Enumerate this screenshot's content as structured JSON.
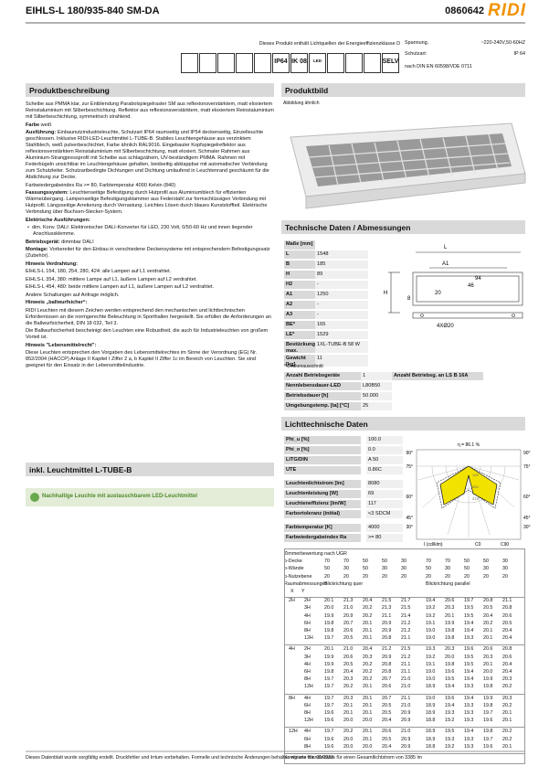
{
  "header": {
    "title": "EIHLS-L 180/935-840 SM-DA",
    "code": "0860642",
    "logo": "RIDI"
  },
  "energy_note": "Dieses Produkt enthält Lichtquellen der Energieeffizienzklasse  D",
  "icons": [
    "IP64",
    "IK 08",
    "LED",
    "SELV"
  ],
  "specs": {
    "rows": [
      [
        "Spannung,",
        "~220-240V,50-60HZ"
      ],
      [
        "Schutzart:",
        "IP 64"
      ]
    ],
    "norm": "nach DIN EN 60598/VDE 0711"
  },
  "description": {
    "title": "Produktbeschreibung",
    "items": [
      {
        "text": "Scheibe aus PMMA klar, zur Entblendung Parabolspiegelraster SM aus reflexionsverstärktem, matt eloxiertem Reinstaluminium mit Silberbeschichtung. Reflektor aus reflexionsverstärktem, matt eloxiertem Reinstaluminium mit Silberbeschichtung, symmetrisch strahlend."
      },
      {
        "label": "Farbe",
        "text": "weiß"
      },
      {
        "label": "Ausführung:",
        "text": "Einbaunutzindustrieleuchte, Schutzart IP64 raumseitig und IP54 deckenseitig, Einzelleuchte geschlossen. Inklusive RIDI-LED-Leuchtmittel L-TUBE-B. Stabiles Leuchtengehäuse aus verzinktem Stahlblech, weiß pulverbeschichtet, Farbe ähnlich RAL9016. Eingebauter Kopfspiegelreflektor aus reflexionsverstärktem Reinstaluminium mit Silberbeschichtung, matt eloxiert. Schmaler Rahmen aus Aluminium-Strangpressprofil mit Scheibe aus schlagzähem, UV-beständigem PMMA. Rahmen mit Federbügeln unsichtbar im Leuchtengehäuse gehalten, beidseitig abklappbar mit automatischer Verbindung zum Schutzleiter. Schutzartbedingte Dichtungen und Dichtung umlaufend in Leuchtenrand geschäumt für die Abdichtung zur Decke."
      },
      {
        "text": "Farbwiedergabeindex Ra >= 80, Farbtemperatur 4000 Kelvin (840)"
      },
      {
        "label": "Fassungssystem:",
        "text": "Leuchtenseitige Befestigung durch Hutprofil aus Aluminiumblech für effizienten Wärmeübergang. Lampenseitige Befestigungsklammer aus Federstahl zur formschlüssigen Verbindung mit Hutprofil. Längsseitige Arretierung durch Verrastung. Leichtes Lösen durch blaues Kunststoffteil. Elektrische Verbindung über Buchsen-Stecker-System."
      },
      {
        "heading": "Elektrische Ausführungen:"
      },
      {
        "bullet": "dim. Konv. DALI: Elektronischer DALI-Konverter für LED, 230 Volt, 0/50-60 Hz und innen liegender Anschlussklemme."
      },
      {
        "label": "Betriebsgerät:",
        "text": "dimmbar DALI"
      },
      {
        "label": "Montage:",
        "text": "Vorbereitet für den Einbau in verschiedene Deckensysteme mit entsprechendem Befestigungssatz (Zubehör)."
      },
      {
        "heading": "Hinweis Verdrahtung:"
      },
      {
        "text": "EIHLS-L 154, 180, 254, 280, 424: alle Lampen auf L1 verdrahtet."
      },
      {
        "text": "EIHLS-L 354, 380: mittlere Lampe auf L1, äußere Lampen auf L2 verdrahtet."
      },
      {
        "text": "EIHLS-L 454, 480: beide mittlere Lampen auf L1, äußere Lampen auf L2 verdrahtet."
      },
      {
        "text": "Andere Schaltungen auf Anfrage möglich."
      },
      {
        "heading": "Hinweis „ballwurfsicher“:"
      },
      {
        "text": "RIDI Leuchten mit diesem Zeichen werden entsprechend den mechanischen und lichttechnischen Erfordernissen an die normgerechte Beleuchtung in Sporthallen hergestellt. Sie erfüllen die Anforderungen an die Ballwurfsicherheit, DIN 18 032, Teil 3."
      },
      {
        "text": "Die Ballwurfsicherheit bescheinigt den Leuchten eine Robustheit, die auch für Industrieleuchten von großem Vorteil ist."
      },
      {
        "heading": "Hinweis \"Lebensmittelrecht\":"
      },
      {
        "text": "Diese Leuchten entsprechen den Vorgaben des Lebensmittelrechtes im Sinne der Verordnung (EG) Nr. 852/2004 (HACCP) Anlage II Kapitel I Ziffer 2 a, b Kapitel II Ziffer 1c im Bereich von Leuchten. Sie sind geeignet für den Einsatz in der Lebensmittelindustrie."
      }
    ]
  },
  "lamp_title": "inkl. Leuchtmittel L-TUBE-B",
  "green_note": "Nachhaltige Leuchte mit austauschbarem LED-Leuchtmittel",
  "product_image": {
    "title": "Produktbild",
    "caption": "Abbildung ähnlich"
  },
  "technical": {
    "title": "Technische Daten / Abmessungen",
    "header": "Maße [mm]",
    "rows": [
      [
        "L",
        "1548"
      ],
      [
        "B",
        "185"
      ],
      [
        "H",
        "89"
      ],
      [
        "H2",
        "-"
      ],
      [
        "A1",
        "1250"
      ],
      [
        "A2",
        "-"
      ],
      [
        "A3",
        "-"
      ],
      [
        "BE*",
        "165"
      ],
      [
        "LE*",
        "1529"
      ],
      [
        "Bestückung max.",
        "1XL-TUBE-B 58 W"
      ],
      [
        "Gewicht [kg]",
        "11"
      ]
    ],
    "footnote": "* Deckenausschnitt",
    "drawing_labels": [
      "L",
      "A1",
      "94",
      "46",
      "H",
      "20",
      "8",
      "4XØ20"
    ]
  },
  "gear": {
    "rows": [
      [
        "Anzahl Betriebsgeräte",
        "1",
        "Anzahl Betriebsg. an LS B 16A"
      ],
      [
        "Nennlebensdauer-LED",
        "L80B50"
      ],
      [
        "Betriebsdauer [h]",
        "50.000"
      ],
      [
        "Umgebungstemp. [ta] [°C]",
        "25"
      ]
    ]
  },
  "photometric": {
    "title": "Lichttechnische Daten",
    "rows": [
      [
        "Phi_u [%]",
        "100.0"
      ],
      [
        "Phi_o [%]",
        "0.0"
      ],
      [
        "LITG/DIN",
        "A 50"
      ],
      [
        "UTE",
        "0.86C"
      ],
      [
        "Leuchtenlichtstrom [lm]",
        "8080"
      ],
      [
        "Leuchtenleistung [W]",
        "69"
      ],
      [
        "Leuchteneffizienz [lm/W]",
        "117"
      ],
      [
        "Farbortoleranz (initial)",
        "<3 SDCM"
      ],
      [
        "Farbtemperatur [K]",
        "4000"
      ],
      [
        "Farbwiedergabeindex Ra",
        ">= 80"
      ]
    ],
    "polar": {
      "eta": "η = 86.1 %",
      "angles": [
        "90°",
        "75°",
        "60°",
        "45°",
        "30°"
      ],
      "radii": [
        "125",
        "250",
        "375"
      ],
      "unit": "I (cd/klm)",
      "c0": "C0",
      "c90": "C90"
    }
  },
  "ugr": {
    "title": "Zimmerbewertung nach UGR",
    "refl": [
      [
        "ρ-Decke",
        "70",
        "70",
        "50",
        "50",
        "30",
        "70",
        "70",
        "50",
        "50",
        "30"
      ],
      [
        "ρ-Wände",
        "50",
        "30",
        "50",
        "30",
        "30",
        "50",
        "30",
        "50",
        "30",
        "30"
      ],
      [
        "ρ-Nutzebene",
        "20",
        "20",
        "20",
        "20",
        "20",
        "20",
        "20",
        "20",
        "20",
        "20"
      ]
    ],
    "room": "Raumabmessungen",
    "xy": [
      "X",
      "Y"
    ],
    "dir": [
      "Blickrichtung quer",
      "Blickrichtung parallel"
    ],
    "groups": [
      {
        "x": "2H",
        "rows": [
          [
            "2H",
            "20.1",
            "21.3",
            "20.4",
            "21.5",
            "21.7",
            "19.4",
            "20.6",
            "19.7",
            "20.8",
            "21.1"
          ],
          [
            "3H",
            "20.0",
            "21.0",
            "20.2",
            "21.3",
            "21.5",
            "19.2",
            "20.3",
            "19.5",
            "20.5",
            "20.8"
          ],
          [
            "4H",
            "19.9",
            "20.9",
            "20.2",
            "21.1",
            "21.4",
            "19.2",
            "20.1",
            "19.5",
            "20.4",
            "20.6"
          ],
          [
            "6H",
            "19.8",
            "20.7",
            "20.1",
            "20.9",
            "21.2",
            "19.1",
            "19.9",
            "19.4",
            "20.2",
            "20.5"
          ],
          [
            "8H",
            "19.8",
            "20.6",
            "20.1",
            "20.9",
            "21.2",
            "19.0",
            "19.8",
            "19.4",
            "20.1",
            "20.4"
          ],
          [
            "12H",
            "19.7",
            "20.5",
            "20.1",
            "20.8",
            "21.1",
            "19.0",
            "19.8",
            "19.3",
            "20.1",
            "20.4"
          ]
        ]
      },
      {
        "x": "4H",
        "rows": [
          [
            "2H",
            "20.1",
            "21.0",
            "20.4",
            "21.2",
            "21.5",
            "19.3",
            "20.3",
            "19.6",
            "20.6",
            "20.8"
          ],
          [
            "3H",
            "19.9",
            "20.6",
            "20.3",
            "20.9",
            "21.2",
            "19.2",
            "20.0",
            "19.5",
            "20.3",
            "20.6"
          ],
          [
            "4H",
            "19.9",
            "20.5",
            "20.2",
            "20.8",
            "21.1",
            "19.1",
            "19.8",
            "19.5",
            "20.1",
            "20.4"
          ],
          [
            "6H",
            "19.8",
            "20.4",
            "20.2",
            "20.8",
            "21.1",
            "19.0",
            "19.6",
            "19.4",
            "20.0",
            "20.4"
          ],
          [
            "8H",
            "19.7",
            "20.3",
            "20.2",
            "20.7",
            "21.0",
            "19.0",
            "19.5",
            "19.4",
            "19.9",
            "20.3"
          ],
          [
            "12H",
            "19.7",
            "20.2",
            "20.1",
            "20.6",
            "21.0",
            "18.9",
            "19.4",
            "19.3",
            "19.8",
            "20.2"
          ]
        ]
      },
      {
        "x": "8H",
        "rows": [
          [
            "4H",
            "19.7",
            "20.3",
            "20.1",
            "20.7",
            "21.1",
            "19.0",
            "19.6",
            "19.4",
            "19.9",
            "20.3"
          ],
          [
            "6H",
            "19.7",
            "20.1",
            "20.1",
            "20.5",
            "21.0",
            "18.9",
            "19.4",
            "19.3",
            "19.8",
            "20.2"
          ],
          [
            "8H",
            "19.6",
            "20.1",
            "20.1",
            "20.5",
            "20.9",
            "18.9",
            "19.3",
            "19.3",
            "19.7",
            "20.1"
          ],
          [
            "12H",
            "19.6",
            "20.0",
            "20.0",
            "20.4",
            "20.9",
            "18.8",
            "19.2",
            "19.3",
            "19.6",
            "20.1"
          ]
        ]
      },
      {
        "x": "12H",
        "rows": [
          [
            "4H",
            "19.7",
            "20.2",
            "20.1",
            "20.6",
            "21.0",
            "18.9",
            "19.5",
            "19.4",
            "19.8",
            "20.2"
          ],
          [
            "6H",
            "19.6",
            "20.0",
            "20.1",
            "20.5",
            "20.9",
            "18.9",
            "19.3",
            "19.3",
            "19.7",
            "20.2"
          ],
          [
            "8H",
            "19.6",
            "20.0",
            "20.0",
            "20.4",
            "20.9",
            "18.8",
            "19.2",
            "19.3",
            "19.6",
            "20.1"
          ]
        ]
      }
    ],
    "footer": "Korrigierte Blendindizes für einen Gesamtlichtstrom von 3385 lm"
  },
  "footer": "Dieses Datenblatt wurde sorgfältig erstellt. Druckfehler und Irrtum vorbehalten. Formelle und technische Änderungen behalten wir uns vor. 01/2023"
}
